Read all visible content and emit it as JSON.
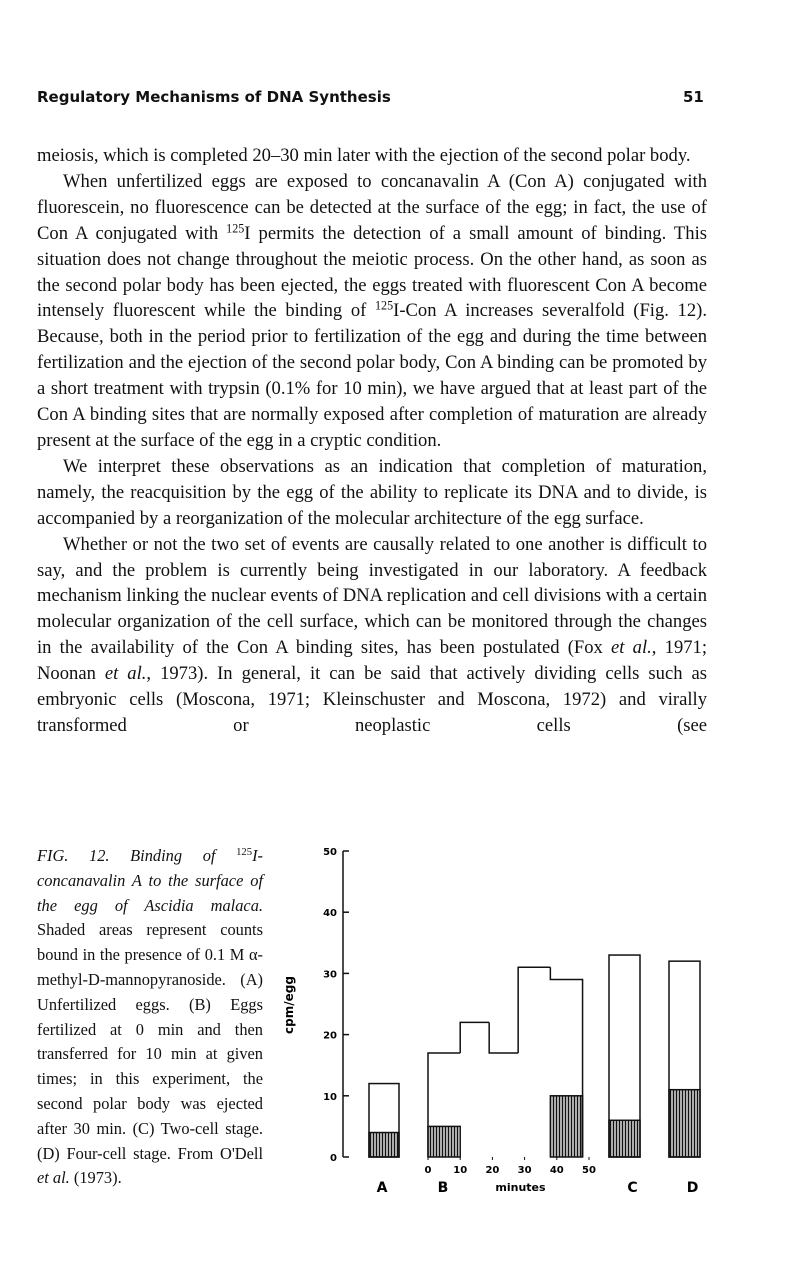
{
  "header": {
    "title": "Regulatory Mechanisms of DNA Synthesis",
    "page": "51"
  },
  "paragraphs": [
    [
      "meiosis, which is completed 20–30 min later with the ejection of the second polar body."
    ],
    [
      "When unfertilized eggs are exposed to concanavalin A (Con A) conjugated with fluorescein, no fluorescence can be detected at the surface of the egg; in fact, the use of Con A conjugated with ",
      {
        "sup": "125"
      },
      "I permits the detection of a small amount of binding. This situation does not change throughout the meiotic process. On the other hand, as soon as the second polar body has been ejected, the eggs treated with fluorescent Con A become intensely fluorescent while the binding of ",
      {
        "sup": "125"
      },
      "I-Con A increases severalfold (Fig. 12). Because, both in the period prior to fertilization of the egg and during the time between fertilization and the ejection of the second polar body, Con A binding can be promoted by a short treatment with trypsin (0.1% for 10 min), we have argued that at least part of the Con A binding sites that are normally exposed after completion of maturation are already present at the surface of the egg in a cryptic condition."
    ],
    [
      "We interpret these observations as an indication that completion of maturation, namely, the reacquisition by the egg of the ability to replicate its DNA and to divide, is accompanied by a reorganization of the molecular architecture of the egg surface."
    ],
    [
      "Whether or not the two set of events are causally related to one another is difficult to say, and the problem is currently being investigated in our laboratory. A feedback mechanism linking the nuclear events of DNA replication and cell divisions with a certain molecular organization of the cell surface, which can be monitored through the changes in the availability of the Con A binding sites, has been postulated (Fox ",
      {
        "i": "et al."
      },
      ", 1971; Noonan ",
      {
        "i": "et al."
      },
      ", 1973). In general, it can be said that actively dividing cells such as embryonic cells (Moscona, 1971; Kleinschuster and Moscona, 1972) and virally transformed or neoplastic cells (see"
    ]
  ],
  "caption": [
    {
      "i": "FIG. 12. Binding of "
    },
    {
      "sup": "125"
    },
    {
      "i": "I-concanavalin A to the surface of the egg of Ascidia malaca."
    },
    " Shaded areas represent counts bound in the presence of 0.1 M α-methyl-D-mannopyranoside. (A) Unfertilized eggs. (B) Eggs fertilized at 0 min and then transferred for 10 min at given times; in this experiment, the second polar body was ejected after 30 min. (C) Two-cell stage. (D) Four-cell stage. From O'Dell ",
    {
      "i": "et al."
    },
    " (1973)."
  ],
  "chart_data": {
    "type": "bar",
    "ylabel": "cpm/egg",
    "ylim": [
      0,
      50
    ],
    "yticks": [
      0,
      10,
      20,
      30,
      40,
      50
    ],
    "panels": [
      {
        "label": "A",
        "total": 12,
        "shaded": 4
      },
      {
        "label": "B",
        "xlabel": "minutes",
        "xlim": [
          0,
          50
        ],
        "xticks": [
          0,
          10,
          20,
          30,
          40,
          50
        ],
        "bins": [
          0,
          10,
          19,
          28,
          38,
          48
        ],
        "total": [
          17,
          22,
          17,
          31,
          29
        ],
        "shaded": [
          5,
          0,
          0,
          0,
          10
        ]
      },
      {
        "label": "C",
        "total": 33,
        "shaded": 6
      },
      {
        "label": "D",
        "total": 32,
        "shaded": 11
      }
    ]
  }
}
